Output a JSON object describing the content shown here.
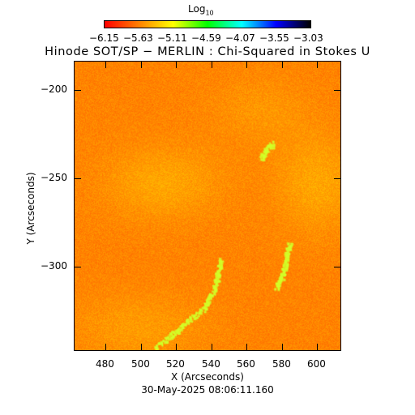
{
  "colorbar": {
    "label_main": "Log",
    "label_sub": "10",
    "tick_labels": [
      "−6.15",
      "−5.63",
      "−5.11",
      "−4.59",
      "−4.07",
      "−3.55",
      "−3.03"
    ],
    "colormap": [
      "#ff0000",
      "#ff8000",
      "#ffff00",
      "#00ff00",
      "#00ffff",
      "#0000ff",
      "#000000"
    ]
  },
  "title": "Hinode SOT/SP − MERLIN : Chi-Squared in Stokes U",
  "axes": {
    "ylabel": "Y (Arcseconds)",
    "xlabel": "X (Arcseconds)",
    "y_ticks": [
      "−200",
      "−250",
      "−300"
    ],
    "x_ticks": [
      "480",
      "500",
      "520",
      "540",
      "560",
      "580",
      "600"
    ]
  },
  "timestamp": "30-May-2025 08:06:11.160"
}
